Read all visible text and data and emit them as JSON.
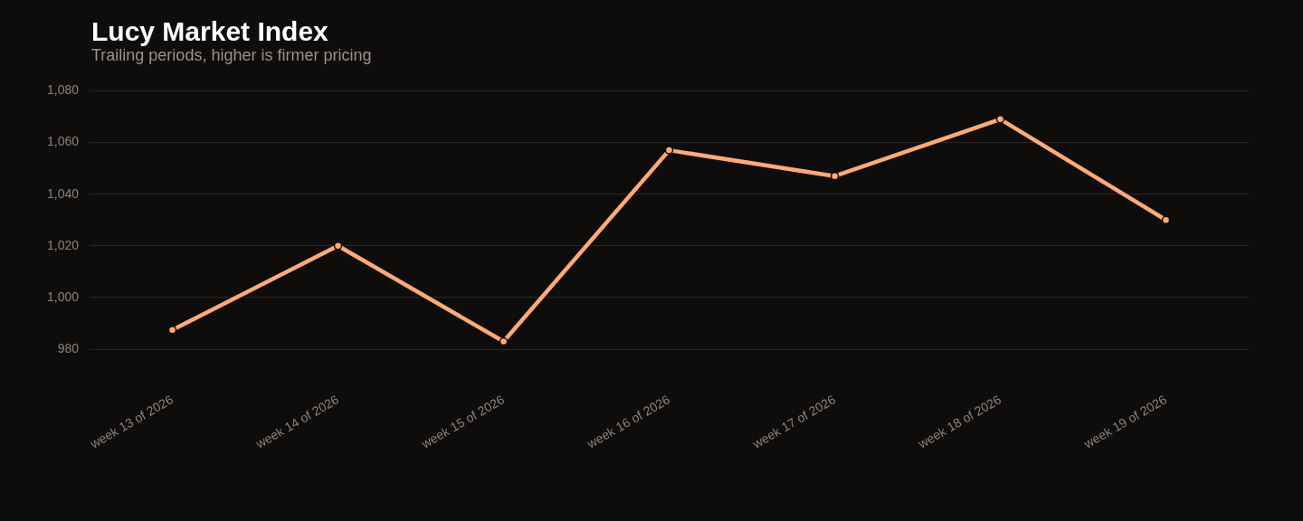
{
  "chart_data": {
    "type": "line",
    "title": "Lucy Market Index",
    "subtitle": "Trailing periods, higher is firmer pricing",
    "categories": [
      "week 13 of 2026",
      "week 14 of 2026",
      "week 15 of 2026",
      "week 16 of 2026",
      "week 17 of 2026",
      "week 18 of 2026",
      "week 19 of 2026"
    ],
    "series": [
      {
        "color": "#ffaa77",
        "values": [
          987.5,
          1020,
          983,
          1057,
          1047,
          1069,
          1030
        ]
      }
    ],
    "ylim": [
      980,
      1080
    ],
    "yticks": [
      {
        "value": 980,
        "label": "980"
      },
      {
        "value": 1000,
        "label": "1,000"
      },
      {
        "value": 1020,
        "label": "1,020"
      },
      {
        "value": 1040,
        "label": "1,040"
      },
      {
        "value": 1060,
        "label": "1,060"
      },
      {
        "value": 1080,
        "label": "1,080"
      }
    ],
    "grid": "y",
    "legend": false,
    "marker": "circle",
    "line_style": "solid"
  }
}
